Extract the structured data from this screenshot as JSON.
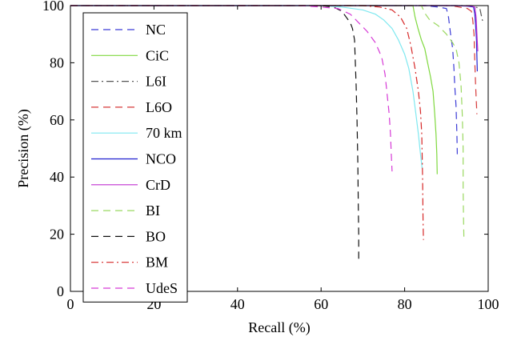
{
  "chart_data": {
    "type": "line",
    "title": "",
    "xlabel": "Recall (%)",
    "ylabel": "Precision (%)",
    "xlim": [
      0,
      100
    ],
    "ylim": [
      0,
      100
    ],
    "xticks": [
      0,
      20,
      40,
      60,
      80,
      100
    ],
    "yticks": [
      0,
      20,
      40,
      60,
      80,
      100
    ],
    "grid": false,
    "legend_position": "top-left",
    "series": [
      {
        "name": "NC",
        "color": "#3b3bd6",
        "dash": "dashed",
        "points": [
          [
            0,
            100
          ],
          [
            85,
            100
          ],
          [
            88,
            99.5
          ],
          [
            90,
            99
          ],
          [
            90.5,
            96
          ],
          [
            91,
            90
          ],
          [
            91.5,
            85
          ],
          [
            91.8,
            78
          ],
          [
            92,
            72
          ],
          [
            92.3,
            65
          ],
          [
            92.5,
            55
          ],
          [
            92.6,
            48
          ]
        ]
      },
      {
        "name": "CiC",
        "color": "#7fd83f",
        "dash": "solid",
        "points": [
          [
            0,
            100
          ],
          [
            82,
            100
          ],
          [
            82.5,
            96
          ],
          [
            83.2,
            92
          ],
          [
            84,
            88
          ],
          [
            84.8,
            85
          ],
          [
            85.5,
            80
          ],
          [
            86.2,
            75
          ],
          [
            86.8,
            70
          ],
          [
            87.2,
            62
          ],
          [
            87.5,
            55
          ],
          [
            87.7,
            48
          ],
          [
            87.8,
            41
          ]
        ]
      },
      {
        "name": "L6I",
        "color": "#555555",
        "dash": "dashdot",
        "points": [
          [
            0,
            100
          ],
          [
            96,
            100
          ],
          [
            97,
            99.5
          ],
          [
            98,
            99
          ],
          [
            98.3,
            97
          ],
          [
            98.6,
            95
          ],
          [
            98.8,
            94
          ]
        ]
      },
      {
        "name": "L6O",
        "color": "#d63a3a",
        "dash": "dashed",
        "points": [
          [
            0,
            100
          ],
          [
            91,
            100
          ],
          [
            93,
            99.5
          ],
          [
            95,
            99
          ],
          [
            96,
            98
          ],
          [
            96.3,
            95
          ],
          [
            96.6,
            90
          ],
          [
            96.8,
            80
          ],
          [
            97,
            72
          ],
          [
            97.2,
            65
          ],
          [
            97.3,
            62
          ]
        ]
      },
      {
        "name": "70 km",
        "color": "#7fe8f0",
        "dash": "solid",
        "points": [
          [
            0,
            100
          ],
          [
            60,
            100
          ],
          [
            65,
            99.5
          ],
          [
            70,
            98.5
          ],
          [
            73,
            97
          ],
          [
            75,
            95
          ],
          [
            77,
            92
          ],
          [
            78.5,
            88
          ],
          [
            80,
            83
          ],
          [
            81,
            78
          ],
          [
            82,
            70
          ],
          [
            82.7,
            62
          ],
          [
            83.3,
            55
          ],
          [
            83.8,
            48
          ],
          [
            84.2,
            43
          ]
        ]
      },
      {
        "name": "NCO",
        "color": "#2020d0",
        "dash": "solid",
        "points": [
          [
            0,
            100
          ],
          [
            92,
            100
          ],
          [
            95,
            99.8
          ],
          [
            96.5,
            99.5
          ],
          [
            96.8,
            97
          ],
          [
            97,
            93
          ],
          [
            97.2,
            88
          ],
          [
            97.3,
            82
          ],
          [
            97.4,
            77
          ]
        ]
      },
      {
        "name": "CrD",
        "color": "#c030d0",
        "dash": "solid",
        "points": [
          [
            0,
            100
          ],
          [
            93,
            100
          ],
          [
            96,
            99.8
          ],
          [
            96.8,
            99.5
          ],
          [
            97.1,
            96
          ],
          [
            97.3,
            90
          ],
          [
            97.5,
            84
          ]
        ]
      },
      {
        "name": "BI",
        "color": "#9ad860",
        "dash": "dashed",
        "points": [
          [
            0,
            100
          ],
          [
            84,
            100
          ],
          [
            85,
            97
          ],
          [
            86,
            95
          ],
          [
            88,
            93
          ],
          [
            90,
            90
          ],
          [
            91.5,
            87
          ],
          [
            92.3,
            85
          ],
          [
            93,
            80
          ],
          [
            93.5,
            72
          ],
          [
            93.8,
            62
          ],
          [
            94,
            50
          ],
          [
            94,
            36
          ],
          [
            94.1,
            25
          ],
          [
            94.2,
            18
          ]
        ]
      },
      {
        "name": "BO",
        "color": "#111111",
        "dash": "dashed",
        "points": [
          [
            0,
            100
          ],
          [
            60,
            100
          ],
          [
            63,
            99.5
          ],
          [
            65,
            98
          ],
          [
            66,
            96
          ],
          [
            67,
            94
          ],
          [
            67.5,
            92
          ],
          [
            68,
            88
          ],
          [
            68.2,
            80
          ],
          [
            68.4,
            72
          ],
          [
            68.6,
            60
          ],
          [
            68.8,
            45
          ],
          [
            68.9,
            30
          ],
          [
            69,
            20
          ],
          [
            69,
            11
          ]
        ]
      },
      {
        "name": "BM",
        "color": "#d62828",
        "dash": "dashdot",
        "points": [
          [
            0,
            100
          ],
          [
            70,
            100
          ],
          [
            74,
            99.5
          ],
          [
            77,
            98.5
          ],
          [
            79,
            96
          ],
          [
            80.5,
            92
          ],
          [
            81.5,
            86
          ],
          [
            82.5,
            78
          ],
          [
            83.3,
            70
          ],
          [
            83.8,
            63
          ],
          [
            84.1,
            55
          ],
          [
            84.3,
            40
          ],
          [
            84.4,
            25
          ],
          [
            84.5,
            18
          ]
        ]
      },
      {
        "name": "UdeS",
        "color": "#d63ad6",
        "dash": "dashed",
        "points": [
          [
            0,
            100
          ],
          [
            55,
            100
          ],
          [
            60,
            99.5
          ],
          [
            64,
            99
          ],
          [
            67,
            97
          ],
          [
            69,
            94
          ],
          [
            71,
            91
          ],
          [
            73,
            87
          ],
          [
            74.5,
            82
          ],
          [
            75.3,
            76
          ],
          [
            75.8,
            69
          ],
          [
            76.3,
            62
          ],
          [
            76.6,
            55
          ],
          [
            76.8,
            48
          ],
          [
            77,
            42
          ]
        ]
      }
    ]
  }
}
